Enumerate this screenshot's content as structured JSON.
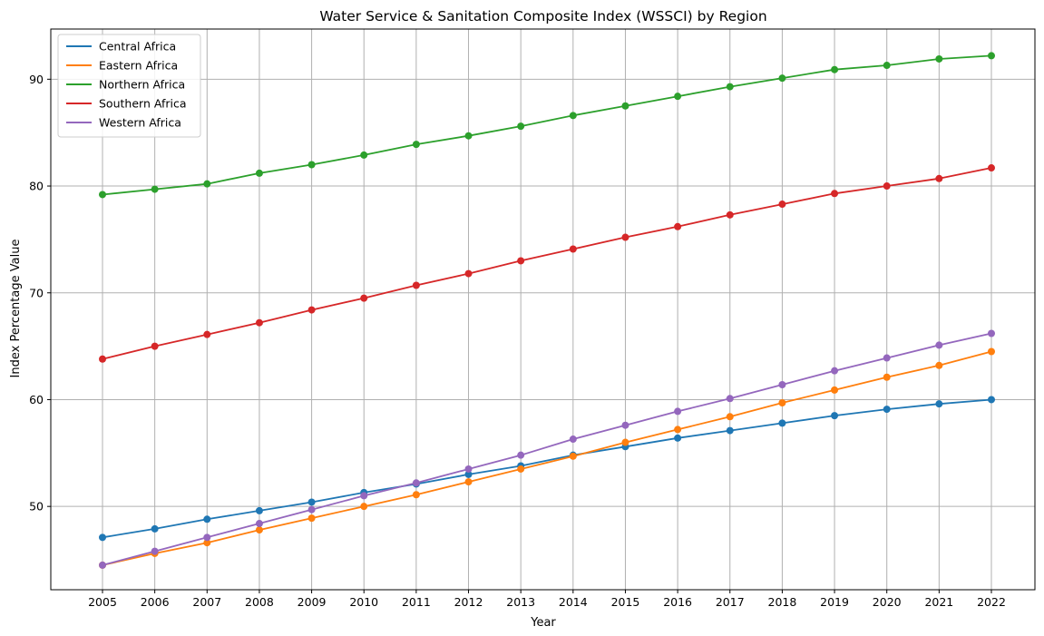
{
  "chart_data": {
    "type": "line",
    "title": "Water Service & Sanitation Composite Index (WSSCI) by Region",
    "xlabel": "Year",
    "ylabel": "Index Percentage Value",
    "categories": [
      "2005",
      "2006",
      "2007",
      "2008",
      "2009",
      "2010",
      "2011",
      "2012",
      "2013",
      "2014",
      "2015",
      "2016",
      "2017",
      "2018",
      "2019",
      "2020",
      "2021",
      "2022"
    ],
    "ylim": [
      42.2,
      94.7
    ],
    "yticks": [
      50,
      60,
      70,
      80,
      90
    ],
    "grid": true,
    "legend_position": "top-left",
    "markers": true,
    "series": [
      {
        "name": "Central Africa",
        "color": "#1f77b4",
        "values": [
          47.1,
          47.9,
          48.8,
          49.6,
          50.4,
          51.3,
          52.1,
          53.0,
          53.8,
          54.8,
          55.6,
          56.4,
          57.1,
          57.8,
          58.5,
          59.1,
          59.6,
          60.0
        ]
      },
      {
        "name": "Eastern Africa",
        "color": "#ff7f0e",
        "values": [
          44.5,
          45.6,
          46.6,
          47.8,
          48.9,
          50.0,
          51.1,
          52.3,
          53.5,
          54.7,
          56.0,
          57.2,
          58.4,
          59.7,
          60.9,
          62.1,
          63.2,
          64.5
        ]
      },
      {
        "name": "Northern Africa",
        "color": "#2ca02c",
        "values": [
          79.2,
          79.7,
          80.2,
          81.2,
          82.0,
          82.9,
          83.9,
          84.7,
          85.6,
          86.6,
          87.5,
          88.4,
          89.3,
          90.1,
          90.9,
          91.3,
          91.9,
          92.2
        ]
      },
      {
        "name": "Southern Africa",
        "color": "#d62728",
        "values": [
          63.8,
          65.0,
          66.1,
          67.2,
          68.4,
          69.5,
          70.7,
          71.8,
          73.0,
          74.1,
          75.2,
          76.2,
          77.3,
          78.3,
          79.3,
          80.0,
          80.7,
          81.7
        ]
      },
      {
        "name": "Western Africa",
        "color": "#9467bd",
        "values": [
          44.5,
          45.8,
          47.1,
          48.4,
          49.7,
          51.0,
          52.2,
          53.5,
          54.8,
          56.3,
          57.6,
          58.9,
          60.1,
          61.4,
          62.7,
          63.9,
          65.1,
          66.2
        ]
      }
    ]
  }
}
